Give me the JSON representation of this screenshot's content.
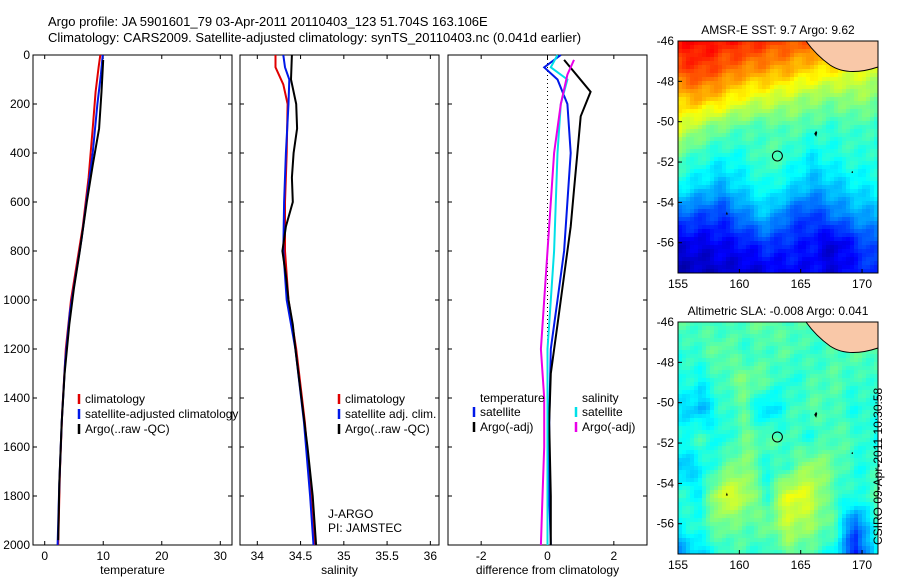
{
  "header": {
    "line1": "Argo profile: JA 5901601_79 03-Apr-2011 20110403_123 51.704S 163.106E",
    "line2": "Climatology: CARS2009. Satellite-adjusted climatology: synTS_20110403.nc (0.041d earlier)"
  },
  "stamp": "CSIRO 09-Apr-2011 10:30:58",
  "colors": {
    "red": "#e00000",
    "blue": "#0018e8",
    "black": "#000000",
    "cyan": "#00e0e8",
    "magenta": "#e800e8"
  },
  "chart_data": [
    {
      "type": "line",
      "xlabel": "temperature",
      "ylim": [
        2000,
        0
      ],
      "xlim": [
        -2,
        32
      ],
      "xticks": [
        0,
        10,
        20,
        30
      ],
      "yticks": [
        0,
        200,
        400,
        600,
        800,
        1000,
        1200,
        1400,
        1600,
        1800,
        2000
      ],
      "legend": [
        "climatology",
        "satellite-adjusted climatology",
        "Argo(..raw -QC)"
      ],
      "legend_position": "lower-right",
      "series": [
        {
          "name": "climatology",
          "color": "red",
          "points": [
            [
              9.5,
              0
            ],
            [
              9.2,
              50
            ],
            [
              8.7,
              150
            ],
            [
              8.2,
              300
            ],
            [
              7.5,
              500
            ],
            [
              6.5,
              700
            ],
            [
              5.5,
              850
            ],
            [
              4.5,
              1000
            ],
            [
              3.6,
              1200
            ],
            [
              3.0,
              1450
            ],
            [
              2.6,
              1700
            ],
            [
              2.3,
              2000
            ]
          ]
        },
        {
          "name": "satellite-adjusted climatology",
          "color": "blue",
          "points": [
            [
              9.9,
              0
            ],
            [
              9.6,
              80
            ],
            [
              9.0,
              200
            ],
            [
              8.2,
              400
            ],
            [
              7.4,
              550
            ],
            [
              6.3,
              750
            ],
            [
              5.3,
              900
            ],
            [
              4.3,
              1050
            ],
            [
              3.5,
              1250
            ],
            [
              2.9,
              1500
            ],
            [
              2.5,
              1750
            ],
            [
              2.2,
              2000
            ]
          ]
        },
        {
          "name": "Argo(..raw -QC)",
          "color": "black",
          "points": [
            [
              10.0,
              20
            ],
            [
              9.7,
              150
            ],
            [
              9.3,
              300
            ],
            [
              8.2,
              450
            ],
            [
              7.2,
              600
            ],
            [
              6.0,
              800
            ],
            [
              5.0,
              950
            ],
            [
              4.2,
              1100
            ],
            [
              3.4,
              1300
            ],
            [
              2.9,
              1500
            ],
            [
              2.5,
              1750
            ],
            [
              2.3,
              1980
            ]
          ]
        }
      ]
    },
    {
      "type": "line",
      "xlabel": "salinity",
      "ylim": [
        2000,
        0
      ],
      "xlim": [
        33.8,
        36.1
      ],
      "xticks": [
        34,
        34.5,
        35,
        35.5,
        36
      ],
      "legend": [
        "climatology",
        "satellite adj. clim.",
        "Argo(..raw -QC)"
      ],
      "legend_position": "lower-right",
      "annotation": [
        "J-ARGO",
        "PI: JAMSTEC"
      ],
      "series": [
        {
          "name": "climatology",
          "color": "red",
          "points": [
            [
              34.21,
              0
            ],
            [
              34.21,
              50
            ],
            [
              34.3,
              120
            ],
            [
              34.35,
              200
            ],
            [
              34.34,
              400
            ],
            [
              34.32,
              600
            ],
            [
              34.32,
              800
            ],
            [
              34.36,
              1000
            ],
            [
              34.45,
              1200
            ],
            [
              34.55,
              1500
            ],
            [
              34.62,
              1800
            ],
            [
              34.66,
              2000
            ]
          ]
        },
        {
          "name": "satellite adj. clim.",
          "color": "blue",
          "points": [
            [
              34.3,
              0
            ],
            [
              34.32,
              50
            ],
            [
              34.37,
              100
            ],
            [
              34.36,
              200
            ],
            [
              34.33,
              400
            ],
            [
              34.31,
              600
            ],
            [
              34.3,
              800
            ],
            [
              34.34,
              1000
            ],
            [
              34.44,
              1200
            ],
            [
              34.54,
              1500
            ],
            [
              34.61,
              1800
            ],
            [
              34.65,
              2000
            ]
          ]
        },
        {
          "name": "Argo(..raw -QC)",
          "color": "black",
          "points": [
            [
              34.4,
              0
            ],
            [
              34.39,
              100
            ],
            [
              34.45,
              200
            ],
            [
              34.46,
              300
            ],
            [
              34.42,
              400
            ],
            [
              34.4,
              500
            ],
            [
              34.41,
              600
            ],
            [
              34.33,
              700
            ],
            [
              34.29,
              800
            ],
            [
              34.33,
              900
            ],
            [
              34.36,
              1000
            ],
            [
              34.41,
              1100
            ],
            [
              34.44,
              1200
            ],
            [
              34.51,
              1400
            ],
            [
              34.58,
              1600
            ],
            [
              34.64,
              1800
            ],
            [
              34.68,
              2000
            ]
          ]
        }
      ]
    },
    {
      "type": "line",
      "xlabel": "difference from climatology",
      "ylim": [
        2000,
        0
      ],
      "xlim": [
        -3,
        3
      ],
      "xticks": [
        -2,
        0,
        2
      ],
      "legend_headers": [
        "temperature",
        "salinity"
      ],
      "legend": [
        "satellite",
        "Argo(-adj)",
        "satellite",
        "Argo(-adj)"
      ],
      "legend_position": "lower-center",
      "series": [
        {
          "name": "satellite",
          "group": "temperature",
          "color": "blue",
          "points": [
            [
              0.4,
              0
            ],
            [
              -0.1,
              50
            ],
            [
              0.3,
              100
            ],
            [
              0.6,
              200
            ],
            [
              0.7,
              400
            ],
            [
              0.6,
              600
            ],
            [
              0.5,
              800
            ],
            [
              0.3,
              1000
            ],
            [
              0.1,
              1200
            ],
            [
              0.05,
              1500
            ],
            [
              0.05,
              1800
            ],
            [
              0.1,
              2000
            ]
          ]
        },
        {
          "name": "Argo(-adj)",
          "group": "temperature",
          "color": "black",
          "points": [
            [
              0.5,
              20
            ],
            [
              1.3,
              150
            ],
            [
              1.0,
              250
            ],
            [
              0.9,
              400
            ],
            [
              0.8,
              550
            ],
            [
              0.7,
              700
            ],
            [
              0.5,
              900
            ],
            [
              0.3,
              1100
            ],
            [
              0.1,
              1300
            ],
            [
              0.05,
              1500
            ],
            [
              0.1,
              1800
            ],
            [
              0.1,
              2000
            ]
          ]
        },
        {
          "name": "satellite",
          "group": "salinity",
          "color": "cyan",
          "points": [
            [
              0.3,
              0
            ],
            [
              0.1,
              50
            ],
            [
              0.6,
              100
            ],
            [
              0.4,
              200
            ],
            [
              0.3,
              400
            ],
            [
              0.25,
              600
            ],
            [
              0.2,
              800
            ],
            [
              0.1,
              1000
            ],
            [
              0.0,
              1200
            ],
            [
              0.0,
              1500
            ],
            [
              0.0,
              1800
            ],
            [
              0.0,
              2000
            ]
          ]
        },
        {
          "name": "Argo(-adj)",
          "group": "salinity",
          "color": "magenta",
          "points": [
            [
              0.8,
              20
            ],
            [
              0.6,
              80
            ],
            [
              0.4,
              200
            ],
            [
              0.2,
              400
            ],
            [
              0.1,
              600
            ],
            [
              0.0,
              800
            ],
            [
              -0.1,
              1000
            ],
            [
              -0.2,
              1200
            ],
            [
              -0.1,
              1400
            ],
            [
              -0.1,
              1600
            ],
            [
              -0.15,
              1800
            ],
            [
              -0.2,
              2000
            ]
          ]
        }
      ]
    },
    {
      "type": "heatmap",
      "title": "AMSR-E SST: 9.7 Argo: 9.62",
      "xlim": [
        155,
        171.3
      ],
      "ylim": [
        -46,
        -57.5
      ],
      "xticks": [
        155,
        160,
        165,
        170
      ],
      "yticks": [
        -46,
        -48,
        -50,
        -52,
        -54,
        -56
      ],
      "marker": {
        "lon": 163.1,
        "lat": -51.7
      },
      "colormap": "jet",
      "field": [
        [
          0.85,
          0.88,
          0.85,
          0.85,
          0.82,
          0.8,
          0.78,
          0.8,
          0.76,
          0.74
        ],
        [
          0.8,
          0.82,
          0.78,
          0.74,
          0.72,
          0.7,
          0.66,
          0.64,
          0.6,
          0.58
        ],
        [
          0.68,
          0.7,
          0.66,
          0.6,
          0.58,
          0.55,
          0.52,
          0.5,
          0.52,
          0.5
        ],
        [
          0.6,
          0.52,
          0.48,
          0.45,
          0.44,
          0.46,
          0.44,
          0.42,
          0.44,
          0.42
        ],
        [
          0.46,
          0.42,
          0.38,
          0.4,
          0.46,
          0.42,
          0.36,
          0.4,
          0.42,
          0.4
        ],
        [
          0.38,
          0.34,
          0.3,
          0.36,
          0.4,
          0.36,
          0.3,
          0.32,
          0.36,
          0.38
        ],
        [
          0.22,
          0.2,
          0.18,
          0.26,
          0.32,
          0.22,
          0.18,
          0.24,
          0.28,
          0.3
        ],
        [
          0.1,
          0.1,
          0.12,
          0.14,
          0.18,
          0.16,
          0.14,
          0.08,
          0.16,
          0.22
        ],
        [
          0.06,
          0.06,
          0.08,
          0.08,
          0.1,
          0.12,
          0.12,
          0.1,
          0.14,
          0.18
        ]
      ]
    },
    {
      "type": "heatmap",
      "title": "Altimetric SLA: -0.008 Argo: 0.041",
      "xlim": [
        155,
        171.3
      ],
      "ylim": [
        -46,
        -57.5
      ],
      "xticks": [
        155,
        160,
        165,
        170
      ],
      "yticks": [
        -46,
        -48,
        -50,
        -52,
        -54,
        -56
      ],
      "marker": {
        "lon": 163.1,
        "lat": -51.7
      },
      "colormap": "jet",
      "field": [
        [
          0.45,
          0.45,
          0.42,
          0.46,
          0.48,
          0.44,
          0.45,
          0.46,
          0.47,
          0.48
        ],
        [
          0.4,
          0.44,
          0.48,
          0.42,
          0.44,
          0.46,
          0.42,
          0.44,
          0.46,
          0.45
        ],
        [
          0.42,
          0.38,
          0.44,
          0.5,
          0.46,
          0.4,
          0.44,
          0.46,
          0.42,
          0.44
        ],
        [
          0.36,
          0.3,
          0.42,
          0.46,
          0.32,
          0.42,
          0.46,
          0.44,
          0.4,
          0.42
        ],
        [
          0.4,
          0.44,
          0.38,
          0.48,
          0.46,
          0.44,
          0.4,
          0.46,
          0.44,
          0.38
        ],
        [
          0.3,
          0.36,
          0.46,
          0.52,
          0.4,
          0.44,
          0.54,
          0.48,
          0.4,
          0.42
        ],
        [
          0.42,
          0.38,
          0.6,
          0.56,
          0.42,
          0.62,
          0.58,
          0.44,
          0.4,
          0.46
        ],
        [
          0.38,
          0.42,
          0.5,
          0.46,
          0.48,
          0.56,
          0.52,
          0.46,
          0.2,
          0.44
        ],
        [
          0.26,
          0.34,
          0.42,
          0.44,
          0.4,
          0.48,
          0.44,
          0.38,
          0.14,
          0.4
        ]
      ]
    }
  ]
}
